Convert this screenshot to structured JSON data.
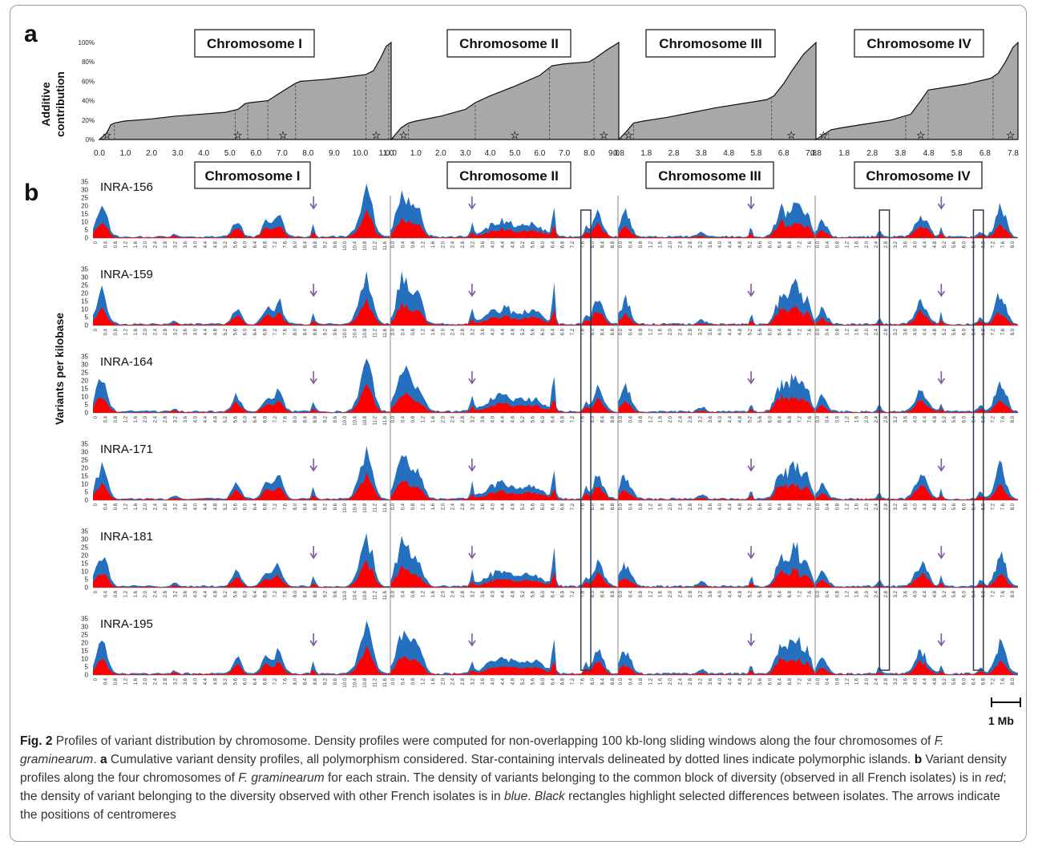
{
  "panel_a_label": "a",
  "panel_b_label": "b",
  "panel_a_ylabel": [
    "Additive",
    "contribution"
  ],
  "panel_b_ylabel": "Variants per kilobase",
  "scale_bar_label": "1 Mb",
  "colors": {
    "red": "#ff0000",
    "blue": "#2470bf",
    "gray_fill": "#a8a8a8",
    "rect": "#2e3b4e",
    "arrow": "#7e5aa0"
  },
  "caption": {
    "fig": "Fig. 2",
    "text_1": " Profiles of variant distribution by chromosome. Density profiles were computed for non-overlapping 100 kb-long sliding windows along the four chromosomes of ",
    "species_1": "F. graminearum",
    "text_2": ". ",
    "a": "a",
    "text_3": " Cumulative variant density profiles, all polymorphism considered. Star-containing intervals delineated by dotted lines indicate polymorphic islands. ",
    "b": "b",
    "text_4": " Variant density profiles along the four chromosomes of ",
    "species_2": "F. graminearum",
    "text_5": " for each strain. The density of variants belonging to the common block of diversity (observed in all French isolates) is in ",
    "red": "red",
    "text_6": "; the density of variant belonging to the diversity observed with other French isolates is in ",
    "blue": "blue",
    "text_7": ". ",
    "black": "Black",
    "text_8": " rectangles highlight selected differences between isolates. The arrows indicate the positions of centromeres"
  },
  "chart_data": [
    {
      "type": "area",
      "panel": "a",
      "y_ticks": [
        "0%",
        "20%",
        "40%",
        "60%",
        "80%",
        "100%"
      ],
      "ylim": [
        0,
        100
      ],
      "chromosomes": [
        {
          "title": "Chromosome I",
          "x_ticks": [
            "0.0",
            "1.0",
            "2.0",
            "3.0",
            "4.0",
            "5.0",
            "6.0",
            "7.0",
            "8.0",
            "9.0",
            "10.0",
            "11.0"
          ],
          "xlim": [
            0,
            11.6
          ],
          "x": [
            0,
            0.3,
            0.45,
            0.6,
            1.0,
            2.0,
            3.0,
            4.0,
            5.0,
            5.5,
            5.8,
            6.0,
            6.7,
            7.3,
            7.8,
            8.0,
            9.0,
            10.0,
            10.6,
            10.9,
            11.2,
            11.4,
            11.6
          ],
          "y": [
            0,
            7,
            15,
            17,
            19,
            21,
            24,
            26,
            28,
            31,
            37,
            38,
            40,
            50,
            58,
            60,
            62,
            65,
            67,
            71,
            85,
            96,
            100
          ],
          "island_bounds": [
            0.1,
            0.6,
            5.4,
            5.9,
            6.7,
            7.8,
            10.6,
            11.5
          ],
          "stars": [
            0.3,
            5.5,
            7.3,
            11.0
          ]
        },
        {
          "title": "Chromosome II",
          "x_ticks": [
            "0.0",
            "1.0",
            "2.0",
            "3.0",
            "4.0",
            "5.0",
            "6.0",
            "7.0",
            "8.0",
            "9.0"
          ],
          "xlim": [
            0,
            9.2
          ],
          "x": [
            0,
            0.4,
            0.7,
            1.0,
            2.0,
            3.0,
            3.4,
            4.0,
            5.0,
            6.0,
            6.5,
            7.0,
            8.0,
            8.2,
            8.7,
            9.2
          ],
          "y": [
            0,
            12,
            17,
            19,
            24,
            31,
            38,
            45,
            55,
            66,
            76,
            78,
            80,
            83,
            92,
            100
          ],
          "island_bounds": [
            0.1,
            0.7,
            3.4,
            6.4,
            8.2
          ],
          "stars": [
            0.5,
            5.0,
            8.6
          ]
        },
        {
          "title": "Chromosome III",
          "x_ticks": [
            "0.8",
            "1.8",
            "2.8",
            "3.8",
            "4.8",
            "5.8",
            "6.8",
            "7.8"
          ],
          "xlim": [
            0,
            8.0
          ],
          "x": [
            0,
            0.3,
            0.6,
            1.0,
            2.0,
            3.0,
            4.0,
            5.0,
            6.0,
            6.3,
            6.7,
            7.0,
            7.5,
            8.0
          ],
          "y": [
            0,
            8,
            17,
            19,
            23,
            28,
            33,
            37,
            41,
            45,
            58,
            70,
            88,
            100
          ],
          "island_bounds": [
            0.1,
            0.6,
            6.2
          ],
          "stars": [
            0.4,
            7.0
          ]
        },
        {
          "title": "Chromosome IV",
          "x_ticks": [
            "0.8",
            "1.8",
            "2.8",
            "3.8",
            "4.8",
            "5.8",
            "6.8",
            "7.8"
          ],
          "xlim": [
            0,
            8.1
          ],
          "x": [
            0,
            0.3,
            0.6,
            1.0,
            2.0,
            3.0,
            3.8,
            4.2,
            4.5,
            5.0,
            6.0,
            7.0,
            7.3,
            7.6,
            7.9,
            8.1
          ],
          "y": [
            0,
            5,
            10,
            12,
            16,
            20,
            26,
            40,
            51,
            53,
            57,
            63,
            68,
            80,
            95,
            100
          ],
          "island_bounds": [
            0.1,
            0.5,
            3.6,
            4.5,
            7.1
          ],
          "stars": [
            0.3,
            4.2,
            7.8
          ]
        }
      ]
    },
    {
      "type": "area",
      "panel": "b",
      "y_ticks": [
        "0",
        "5",
        "10",
        "15",
        "20",
        "25",
        "30",
        "35"
      ],
      "ylim": [
        0,
        35
      ],
      "series_colors": [
        "#ff0000",
        "#2470bf"
      ],
      "chromosomes": [
        {
          "title": "Chromosome I",
          "x_ticks": [
            "0",
            "0.4",
            "0.8",
            "1.2",
            "1.6",
            "2.0",
            "2.4",
            "2.8",
            "3.2",
            "3.6",
            "4.0",
            "4.4",
            "4.8",
            "5.2",
            "5.6",
            "6.0",
            "6.4",
            "6.8",
            "7.2",
            "7.6",
            "8.0",
            "8.4",
            "8.8",
            "9.2",
            "9.6",
            "10.0",
            "10.4",
            "10.8",
            "11.2",
            "11.6"
          ],
          "xlim": [
            0,
            12.0
          ],
          "centromere": 8.9,
          "peaks": [
            {
              "x": 0.35,
              "blue": 22,
              "red": 10,
              "w": 0.3
            },
            {
              "x": 3.3,
              "blue": 2,
              "red": 1,
              "w": 0.15
            },
            {
              "x": 5.8,
              "blue": 10,
              "red": 6,
              "w": 0.25
            },
            {
              "x": 7.0,
              "blue": 10,
              "red": 6,
              "w": 0.25
            },
            {
              "x": 7.5,
              "blue": 14,
              "red": 7,
              "w": 0.25
            },
            {
              "x": 8.9,
              "blue": 8,
              "red": 3,
              "w": 0.08
            },
            {
              "x": 11.1,
              "blue": 26,
              "red": 13,
              "w": 0.3
            },
            {
              "x": 10.8,
              "blue": 10,
              "red": 5,
              "w": 0.3
            }
          ]
        },
        {
          "title": "Chromosome II",
          "x_ticks": [
            "0.0",
            "0.4",
            "0.8",
            "1.2",
            "1.6",
            "2.0",
            "2.4",
            "2.8",
            "3.2",
            "3.6",
            "4.0",
            "4.4",
            "4.8",
            "5.2",
            "5.6",
            "6.0",
            "6.4",
            "6.8",
            "7.2",
            "7.6",
            "8.0",
            "8.4",
            "8.8"
          ],
          "xlim": [
            0,
            9.2
          ],
          "centromere": 3.3,
          "peaks": [
            {
              "x": 0.5,
              "blue": 28,
              "red": 12,
              "w": 0.35
            },
            {
              "x": 1.1,
              "blue": 18,
              "red": 8,
              "w": 0.3
            },
            {
              "x": 3.3,
              "blue": 9,
              "red": 3,
              "w": 0.08
            },
            {
              "x": 4.5,
              "blue": 10,
              "red": 5,
              "w": 0.8
            },
            {
              "x": 5.8,
              "blue": 7,
              "red": 4,
              "w": 0.6
            },
            {
              "x": 6.6,
              "blue": 22,
              "red": 8,
              "w": 0.08
            },
            {
              "x": 8.4,
              "blue": 15,
              "red": 8,
              "w": 0.3
            },
            {
              "x": 7.9,
              "blue": 6,
              "red": 3,
              "w": 0.1
            }
          ]
        },
        {
          "title": "Chromosome III",
          "x_ticks": [
            "0.0",
            "0.4",
            "0.8",
            "1.2",
            "1.6",
            "2.0",
            "2.4",
            "2.8",
            "3.2",
            "3.6",
            "4.0",
            "4.4",
            "4.8",
            "5.2",
            "5.6",
            "6.0",
            "6.4",
            "6.8",
            "7.2",
            "7.6"
          ],
          "xlim": [
            0,
            8.0
          ],
          "centromere": 5.4,
          "peaks": [
            {
              "x": 0.3,
              "blue": 15,
              "red": 6,
              "w": 0.3
            },
            {
              "x": 3.4,
              "blue": 3,
              "red": 1,
              "w": 0.2
            },
            {
              "x": 5.4,
              "blue": 7,
              "red": 3,
              "w": 0.07
            },
            {
              "x": 6.6,
              "blue": 16,
              "red": 9,
              "w": 0.3
            },
            {
              "x": 7.2,
              "blue": 24,
              "red": 10,
              "w": 0.35
            },
            {
              "x": 7.7,
              "blue": 12,
              "red": 6,
              "w": 0.2
            }
          ]
        },
        {
          "title": "Chromosome IV",
          "x_ticks": [
            "0.0",
            "0.4",
            "0.8",
            "1.2",
            "1.6",
            "2.0",
            "2.4",
            "2.8",
            "3.2",
            "3.6",
            "4.0",
            "4.4",
            "4.8",
            "5.2",
            "5.6",
            "6.0",
            "6.4",
            "6.8",
            "7.2",
            "7.6",
            "8.0"
          ],
          "xlim": [
            0,
            8.2
          ],
          "centromere": 5.1,
          "peaks": [
            {
              "x": 0.3,
              "blue": 10,
              "red": 4,
              "w": 0.25
            },
            {
              "x": 2.6,
              "blue": 4,
              "red": 1,
              "w": 0.1
            },
            {
              "x": 4.3,
              "blue": 14,
              "red": 8,
              "w": 0.35
            },
            {
              "x": 5.1,
              "blue": 7,
              "red": 3,
              "w": 0.07
            },
            {
              "x": 7.5,
              "blue": 20,
              "red": 8,
              "w": 0.3
            },
            {
              "x": 6.7,
              "blue": 4,
              "red": 2,
              "w": 0.15
            }
          ]
        }
      ],
      "strains": [
        "INRA-156",
        "INRA-159",
        "INRA-164",
        "INRA-171",
        "INRA-181",
        "INRA-195"
      ],
      "highlight_boxes": [
        {
          "chromosome": "Chromosome II",
          "x": [
            7.7,
            8.1
          ]
        },
        {
          "chromosome": "Chromosome IV",
          "x": [
            2.6,
            3.0
          ]
        },
        {
          "chromosome": "Chromosome IV",
          "x": [
            6.4,
            6.8
          ]
        }
      ]
    }
  ]
}
